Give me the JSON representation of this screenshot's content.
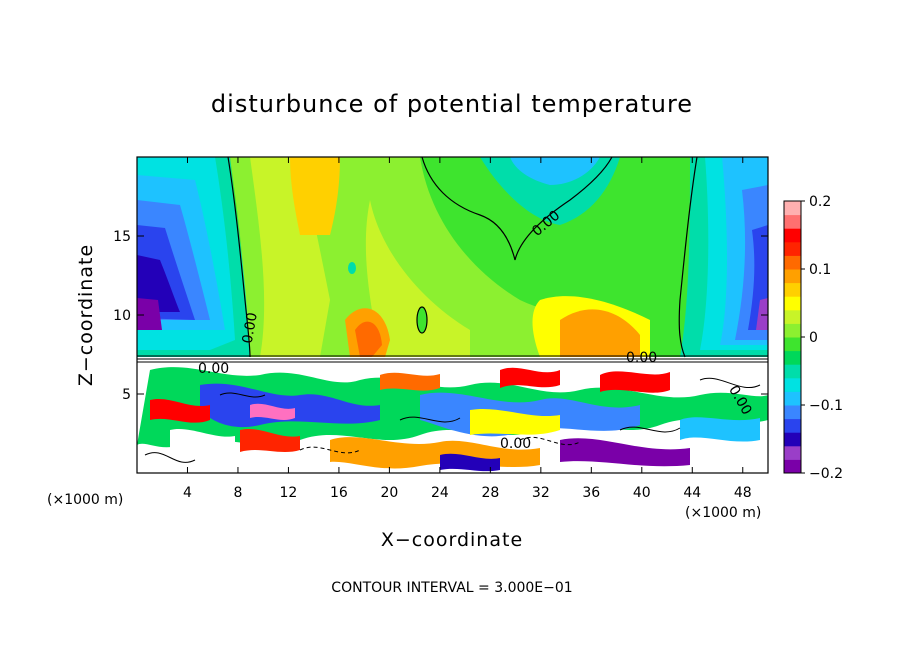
{
  "chart_data": {
    "type": "heatmap",
    "title": "disturbunce of potential temperature",
    "xlabel": "X−coordinate",
    "ylabel": "Z−coordinate",
    "x_unit_left": "(×1000 m)",
    "x_unit_right": "(×1000 m)",
    "x_ticks": [
      "4",
      "8",
      "12",
      "16",
      "20",
      "24",
      "28",
      "32",
      "36",
      "40",
      "44",
      "48"
    ],
    "y_ticks": [
      "5",
      "10",
      "15"
    ],
    "xlim": [
      0,
      50
    ],
    "ylim": [
      0,
      20
    ],
    "colorbar": {
      "ticks": [
        "0.2",
        "0.1",
        "0",
        "−0.1",
        "−0.2"
      ],
      "range": [
        -0.2,
        0.2
      ],
      "colors": [
        "#7a00a8",
        "#9a3ec8",
        "#2300b8",
        "#2a44ee",
        "#3a86ff",
        "#1ec2ff",
        "#00e2e2",
        "#00ddaa",
        "#00d85a",
        "#3ee42e",
        "#8cf030",
        "#c8f428",
        "#ffff00",
        "#ffd000",
        "#ffa000",
        "#ff6a00",
        "#ff2400",
        "#ff0000",
        "#ff7070",
        "#ffb0b0"
      ]
    },
    "contour_labels": [
      "0.00",
      "0.00",
      "0.00",
      "0.00",
      "0.00",
      "0.00"
    ],
    "contour_interval_text": "CONTOUR INTERVAL = 3.000E−01"
  }
}
